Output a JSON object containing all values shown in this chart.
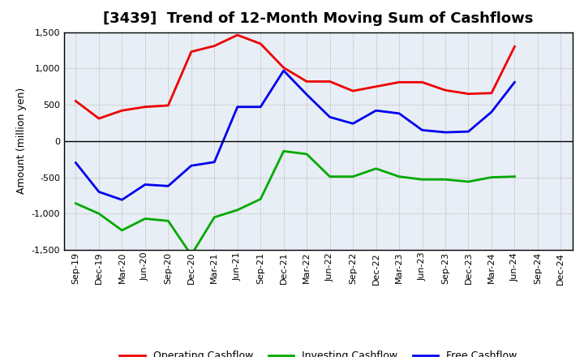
{
  "title": "[3439]  Trend of 12-Month Moving Sum of Cashflows",
  "ylabel": "Amount (million yen)",
  "ylim": [
    -1500,
    1500
  ],
  "yticks": [
    -1500,
    -1000,
    -500,
    0,
    500,
    1000,
    1500
  ],
  "background_color": "#ffffff",
  "plot_bg_color": "#e8eef5",
  "grid_color": "#aaaaaa",
  "x_labels": [
    "Sep-19",
    "Dec-19",
    "Mar-20",
    "Jun-20",
    "Sep-20",
    "Dec-20",
    "Mar-21",
    "Jun-21",
    "Sep-21",
    "Dec-21",
    "Mar-22",
    "Jun-22",
    "Sep-22",
    "Dec-22",
    "Mar-23",
    "Jun-23",
    "Sep-23",
    "Dec-23",
    "Mar-24",
    "Jun-24",
    "Sep-24",
    "Dec-24"
  ],
  "operating_cashflow": [
    550,
    310,
    420,
    470,
    490,
    1230,
    1310,
    1460,
    1340,
    1010,
    820,
    820,
    690,
    750,
    810,
    810,
    700,
    650,
    660,
    1300,
    null,
    null
  ],
  "investing_cashflow": [
    -860,
    -1000,
    -1230,
    -1070,
    -1100,
    -1570,
    -1050,
    -950,
    -800,
    -140,
    -180,
    -490,
    -490,
    -380,
    -490,
    -530,
    -530,
    -560,
    -500,
    -490,
    null,
    null
  ],
  "free_cashflow": [
    -300,
    -700,
    -810,
    -600,
    -620,
    -340,
    -290,
    470,
    470,
    970,
    640,
    330,
    240,
    420,
    380,
    150,
    120,
    130,
    400,
    810,
    null,
    null
  ],
  "operating_color": "#ee0000",
  "investing_color": "#00aa00",
  "free_color": "#0000ee",
  "line_width": 2.0,
  "title_fontsize": 13,
  "axis_label_fontsize": 9,
  "tick_fontsize": 8
}
